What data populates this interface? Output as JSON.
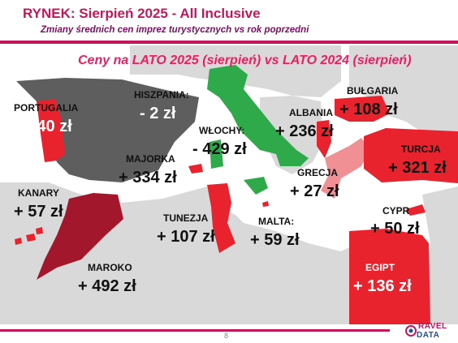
{
  "header": {
    "title": "RYNEK: Sierpień 2025 - All Inclusive",
    "subtitle": "Zmiany średnich cen imprez turystycznych vs rok poprzedni"
  },
  "chart_data": {
    "type": "map",
    "title": "Ceny na LATO 2025 (sierpień) vs  LATO 2024 (sierpień)",
    "unit": "zł",
    "regions": [
      {
        "name": "HISZPANIA:",
        "change": "- 2 zł",
        "value": -2
      },
      {
        "name": "PORTUGALIA",
        "change": "+ 240 zł",
        "value": 240
      },
      {
        "name": "WŁOCHY:",
        "change": "- 429 zł",
        "value": -429
      },
      {
        "name": "ALBANIA",
        "change": "+ 236 zł",
        "value": 236
      },
      {
        "name": "BUŁGARIA",
        "change": "+ 108 zł",
        "value": 108
      },
      {
        "name": "TURCJA",
        "change": "+ 321 zł",
        "value": 321
      },
      {
        "name": "MAJORKA",
        "change": "+ 334 zł",
        "value": 334
      },
      {
        "name": "GRECJA",
        "change": "+ 27 zł",
        "value": 27
      },
      {
        "name": "KANARY",
        "change": "+ 57 zł",
        "value": 57
      },
      {
        "name": "TUNEZJA",
        "change": "+ 107 zł",
        "value": 107
      },
      {
        "name": "MALTA:",
        "change": "+ 59 zł",
        "value": 59
      },
      {
        "name": "CYPR",
        "change": "+ 50 zł",
        "value": 50
      },
      {
        "name": "MAROKO",
        "change": "+ 492 zł",
        "value": 492
      },
      {
        "name": "EGIPT",
        "change": "+ 136 zł",
        "value": 136
      }
    ]
  },
  "colors": {
    "accent": "#c2185b",
    "increase": "#e8232d",
    "decrease": "#2eaa4a",
    "neutral": "#5e5e5e",
    "greece": "#f08f94",
    "morocco": "#a3172c",
    "land": "#d9d9d9"
  },
  "footer": {
    "page_number": "8",
    "logo_line1": "RAVEL",
    "logo_line2": "DATA"
  }
}
